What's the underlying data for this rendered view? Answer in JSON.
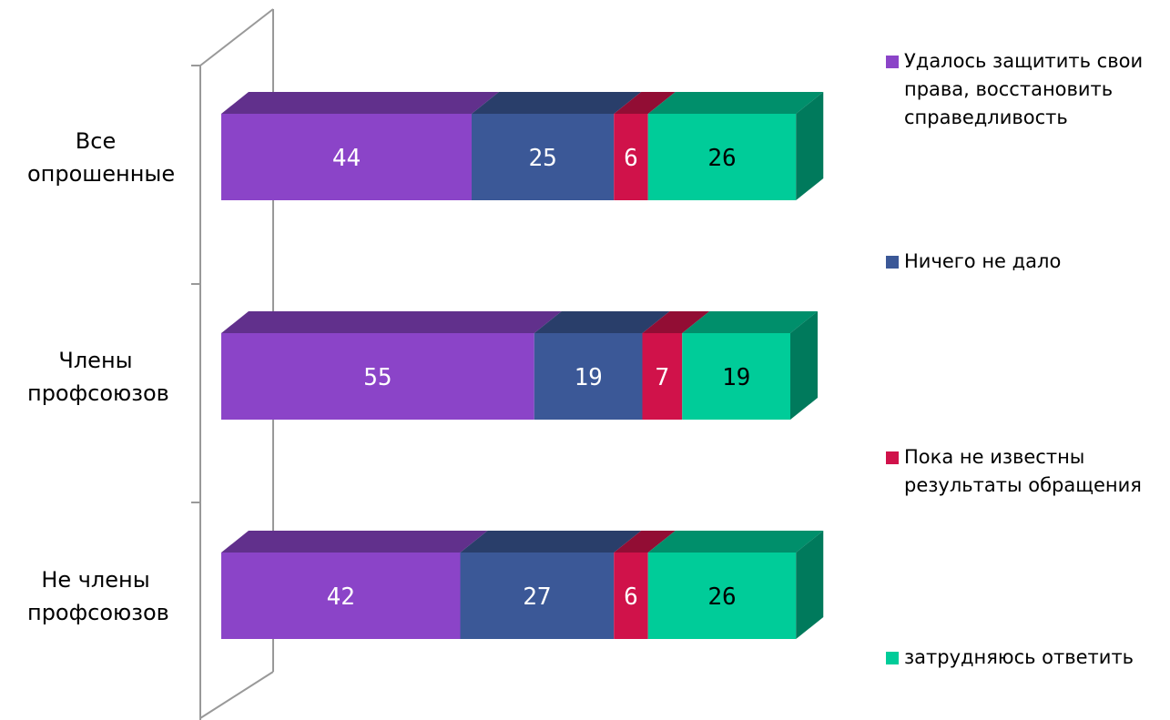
{
  "chart_data": {
    "type": "stacked-bar-3d",
    "categories": [
      "Все опрошенные",
      "Члены профсоюзов",
      "Не члены профсоюзов"
    ],
    "series": [
      {
        "name": "Удалось защитить свои права, восстановить справедливость",
        "color": "#8b44c8",
        "values": [
          44,
          55,
          42
        ]
      },
      {
        "name": "Ничего не дало",
        "color": "#3b5897",
        "values": [
          25,
          19,
          27
        ]
      },
      {
        "name": "Пока не известны результаты обращения",
        "color": "#d0124a",
        "values": [
          6,
          7,
          6
        ]
      },
      {
        "name": "затрудняюсь ответить",
        "color": "#00cc99",
        "values": [
          26,
          19,
          26
        ]
      }
    ]
  }
}
